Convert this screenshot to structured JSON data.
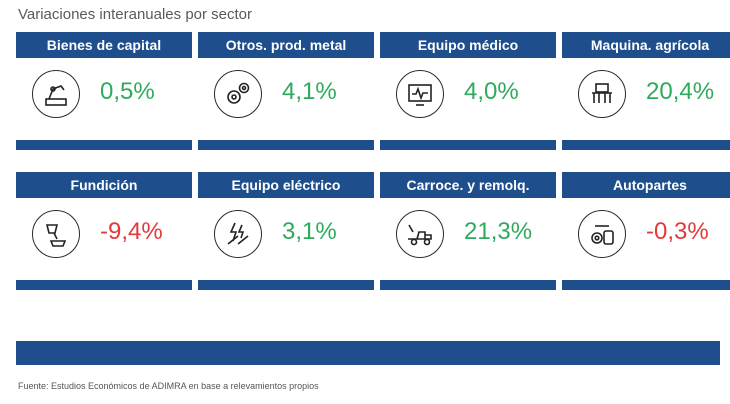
{
  "title": "Variaciones interanuales por sector",
  "source": "Fuente: Estudios Económicos de ADIMRA en base a relevamientos propios",
  "colors": {
    "header": "#1f4e8c",
    "positive": "#2eaa5c",
    "negative": "#e03a3a"
  },
  "cards": [
    {
      "label": "Bienes de capital",
      "value_text": "0,5%",
      "icon": "robot-arm-icon"
    },
    {
      "label": "Otros. prod. metal",
      "value_text": "4,1%",
      "icon": "gears-icon"
    },
    {
      "label": "Equipo médico",
      "value_text": "4,0%",
      "icon": "monitor-icon"
    },
    {
      "label": "Maquina. agrícola",
      "value_text": "20,4%",
      "icon": "tractor-icon"
    },
    {
      "label": "Fundición",
      "value_text": "-9,4%",
      "icon": "foundry-icon"
    },
    {
      "label": "Equipo eléctrico",
      "value_text": "3,1%",
      "icon": "electric-tools-icon"
    },
    {
      "label": "Carroce. y remolq.",
      "value_text": "21,3%",
      "icon": "tow-truck-icon"
    },
    {
      "label": "Autopartes",
      "value_text": "-0,3%",
      "icon": "auto-parts-icon"
    }
  ],
  "chart_data": {
    "type": "table",
    "title": "Variaciones interanuales por sector",
    "categories": [
      "Bienes de capital",
      "Otros. prod. metal",
      "Equipo médico",
      "Maquina. agrícola",
      "Fundición",
      "Equipo eléctrico",
      "Carroce. y remolq.",
      "Autopartes"
    ],
    "values": [
      0.5,
      4.1,
      4.0,
      20.4,
      -9.4,
      3.1,
      21.3,
      -0.3
    ],
    "unit": "%"
  }
}
